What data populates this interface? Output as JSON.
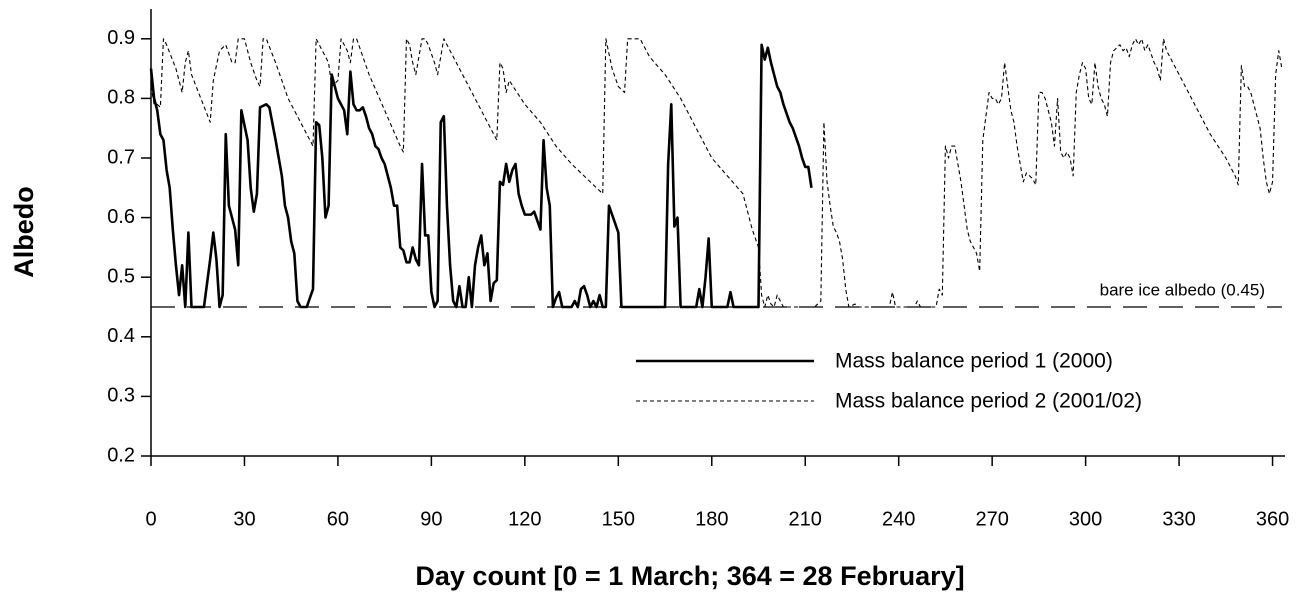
{
  "chart_data": {
    "type": "line",
    "x_label": "Day count [0 = 1 March; 364 = 28 February]",
    "y_label": "Albedo",
    "xlim": [
      0,
      364
    ],
    "ylim": [
      0.2,
      0.95
    ],
    "xticks": [
      0,
      30,
      60,
      90,
      120,
      150,
      180,
      210,
      240,
      270,
      300,
      330,
      360
    ],
    "yticks": [
      0.2,
      0.3,
      0.4,
      0.5,
      0.6,
      0.7,
      0.8,
      0.9
    ],
    "grid": false,
    "legend_position": "center right",
    "reference_line": {
      "value": 0.45,
      "label": "bare ice albedo (0.45)",
      "color": "#000000",
      "line_style": "long-dashed"
    },
    "series": [
      {
        "name": "Mass balance period 1 (2000)",
        "color": "#000000",
        "line_style": "solid",
        "x": [
          0,
          1,
          2,
          3,
          4,
          5,
          6,
          7,
          8,
          9,
          10,
          11,
          12,
          13,
          15,
          17,
          19,
          20,
          21,
          22,
          23,
          24,
          25,
          27,
          28,
          29,
          31,
          32,
          33,
          34,
          35,
          37,
          38,
          40,
          42,
          43,
          44,
          45,
          46,
          47,
          48,
          50,
          52,
          53,
          54,
          55,
          56,
          57,
          58,
          59,
          60,
          61,
          62,
          63,
          64,
          65,
          66,
          67,
          68,
          69,
          70,
          71,
          72,
          73,
          74,
          75,
          76,
          77,
          78,
          79,
          80,
          81,
          82,
          83,
          84,
          85,
          86,
          87,
          88,
          89,
          90,
          91,
          92,
          93,
          94,
          95,
          96,
          97,
          98,
          99,
          100,
          101,
          102,
          103,
          104,
          105,
          106,
          107,
          108,
          109,
          110,
          111,
          112,
          113,
          114,
          115,
          116,
          117,
          118,
          119,
          120,
          122,
          123,
          125,
          126,
          127,
          128,
          129,
          130,
          131,
          132,
          135,
          136,
          137,
          138,
          139,
          140,
          141,
          142,
          143,
          144,
          145,
          146,
          147,
          149,
          150,
          151,
          165,
          166,
          167,
          168,
          169,
          170,
          171,
          172,
          175,
          176,
          177,
          178,
          179,
          180,
          182,
          185,
          186,
          187,
          195,
          196,
          197,
          198,
          199,
          200,
          201,
          202,
          203,
          204,
          205,
          206,
          207,
          208,
          209,
          210,
          211,
          212
        ],
        "values": [
          0.85,
          0.8,
          0.78,
          0.74,
          0.73,
          0.68,
          0.65,
          0.58,
          0.52,
          0.47,
          0.52,
          0.45,
          0.575,
          0.45,
          0.45,
          0.45,
          0.53,
          0.575,
          0.53,
          0.45,
          0.47,
          0.74,
          0.62,
          0.58,
          0.52,
          0.78,
          0.73,
          0.65,
          0.61,
          0.64,
          0.785,
          0.79,
          0.785,
          0.73,
          0.67,
          0.62,
          0.6,
          0.56,
          0.54,
          0.46,
          0.45,
          0.45,
          0.48,
          0.76,
          0.755,
          0.7,
          0.6,
          0.62,
          0.84,
          0.82,
          0.8,
          0.79,
          0.78,
          0.74,
          0.845,
          0.79,
          0.78,
          0.78,
          0.785,
          0.77,
          0.75,
          0.74,
          0.72,
          0.715,
          0.7,
          0.69,
          0.67,
          0.65,
          0.62,
          0.62,
          0.55,
          0.545,
          0.525,
          0.525,
          0.55,
          0.53,
          0.52,
          0.69,
          0.57,
          0.57,
          0.475,
          0.45,
          0.46,
          0.76,
          0.77,
          0.62,
          0.52,
          0.46,
          0.45,
          0.485,
          0.45,
          0.45,
          0.5,
          0.45,
          0.52,
          0.55,
          0.57,
          0.52,
          0.54,
          0.46,
          0.49,
          0.495,
          0.66,
          0.655,
          0.69,
          0.66,
          0.68,
          0.69,
          0.64,
          0.62,
          0.605,
          0.605,
          0.61,
          0.58,
          0.73,
          0.65,
          0.62,
          0.45,
          0.465,
          0.475,
          0.45,
          0.45,
          0.46,
          0.45,
          0.48,
          0.485,
          0.47,
          0.45,
          0.46,
          0.45,
          0.47,
          0.45,
          0.45,
          0.62,
          0.59,
          0.575,
          0.45,
          0.45,
          0.69,
          0.79,
          0.585,
          0.6,
          0.45,
          0.45,
          0.45,
          0.45,
          0.48,
          0.45,
          0.5,
          0.565,
          0.45,
          0.45,
          0.45,
          0.475,
          0.45,
          0.45,
          0.89,
          0.865,
          0.885,
          0.86,
          0.84,
          0.82,
          0.81,
          0.79,
          0.775,
          0.76,
          0.75,
          0.735,
          0.72,
          0.7,
          0.685,
          0.685,
          0.65
        ]
      },
      {
        "name": "Mass balance period 2 (2001/02)",
        "color": "#000000",
        "line_style": "dashed",
        "x": [
          0,
          1,
          2,
          3,
          4,
          5,
          8,
          10,
          11,
          12,
          13,
          16,
          19,
          20,
          22,
          24,
          26,
          27,
          28,
          30,
          32,
          34,
          35,
          36,
          37,
          40,
          44,
          48,
          52,
          53,
          56,
          57,
          58,
          60,
          61,
          63,
          64,
          65,
          66,
          70,
          75,
          80,
          81,
          82,
          83,
          84,
          85,
          86,
          87,
          88,
          89,
          91,
          92,
          93,
          94,
          95,
          100,
          105,
          110,
          111,
          112,
          113,
          114,
          115,
          120,
          125,
          130,
          135,
          140,
          145,
          146,
          148,
          150,
          152,
          153,
          155,
          157,
          160,
          165,
          170,
          175,
          180,
          185,
          190,
          192,
          193,
          195,
          196,
          197,
          198,
          199,
          200,
          201,
          202,
          203,
          210,
          213,
          215,
          216,
          217,
          218,
          219,
          220,
          221,
          222,
          223,
          224,
          226,
          227,
          237,
          238,
          239,
          245,
          246,
          247,
          252,
          253,
          254,
          255,
          256,
          257,
          258,
          259,
          260,
          261,
          262,
          263,
          264,
          265,
          266,
          267,
          268,
          269,
          270,
          271,
          272,
          273,
          274,
          275,
          276,
          277,
          278,
          279,
          280,
          281,
          282,
          283,
          284,
          285,
          286,
          287,
          288,
          289,
          290,
          291,
          292,
          293,
          294,
          295,
          296,
          297,
          298,
          299,
          300,
          301,
          302,
          303,
          304,
          305,
          306,
          307,
          308,
          309,
          310,
          311,
          312,
          313,
          314,
          315,
          316,
          317,
          318,
          319,
          320,
          322,
          323,
          324,
          325,
          326,
          330,
          335,
          340,
          345,
          348,
          349,
          350,
          351,
          352,
          353,
          355,
          356,
          357,
          358,
          359,
          360,
          361,
          362,
          363
        ],
        "values": [
          0.82,
          0.79,
          0.79,
          0.785,
          0.9,
          0.89,
          0.85,
          0.81,
          0.86,
          0.88,
          0.84,
          0.8,
          0.76,
          0.83,
          0.88,
          0.89,
          0.86,
          0.86,
          0.9,
          0.9,
          0.86,
          0.83,
          0.82,
          0.9,
          0.9,
          0.86,
          0.8,
          0.76,
          0.72,
          0.9,
          0.87,
          0.86,
          0.82,
          0.83,
          0.9,
          0.88,
          0.86,
          0.9,
          0.9,
          0.84,
          0.78,
          0.72,
          0.71,
          0.9,
          0.89,
          0.86,
          0.84,
          0.87,
          0.9,
          0.9,
          0.89,
          0.86,
          0.84,
          0.87,
          0.9,
          0.89,
          0.84,
          0.79,
          0.74,
          0.73,
          0.86,
          0.85,
          0.81,
          0.83,
          0.79,
          0.76,
          0.72,
          0.69,
          0.665,
          0.64,
          0.9,
          0.85,
          0.82,
          0.81,
          0.9,
          0.9,
          0.9,
          0.87,
          0.84,
          0.8,
          0.75,
          0.7,
          0.67,
          0.64,
          0.6,
          0.58,
          0.55,
          0.47,
          0.45,
          0.47,
          0.455,
          0.45,
          0.47,
          0.46,
          0.45,
          0.45,
          0.45,
          0.46,
          0.76,
          0.66,
          0.62,
          0.585,
          0.575,
          0.56,
          0.53,
          0.48,
          0.45,
          0.455,
          0.45,
          0.45,
          0.475,
          0.45,
          0.45,
          0.46,
          0.45,
          0.45,
          0.48,
          0.47,
          0.72,
          0.7,
          0.72,
          0.72,
          0.69,
          0.66,
          0.62,
          0.58,
          0.56,
          0.55,
          0.54,
          0.51,
          0.73,
          0.77,
          0.81,
          0.8,
          0.8,
          0.79,
          0.8,
          0.86,
          0.82,
          0.78,
          0.76,
          0.72,
          0.69,
          0.66,
          0.675,
          0.67,
          0.665,
          0.655,
          0.81,
          0.81,
          0.8,
          0.78,
          0.76,
          0.72,
          0.8,
          0.71,
          0.7,
          0.71,
          0.7,
          0.67,
          0.81,
          0.84,
          0.86,
          0.85,
          0.8,
          0.79,
          0.86,
          0.82,
          0.8,
          0.79,
          0.77,
          0.86,
          0.88,
          0.885,
          0.89,
          0.88,
          0.885,
          0.87,
          0.89,
          0.9,
          0.89,
          0.9,
          0.88,
          0.89,
          0.86,
          0.85,
          0.83,
          0.9,
          0.88,
          0.84,
          0.79,
          0.74,
          0.7,
          0.67,
          0.655,
          0.855,
          0.82,
          0.82,
          0.81,
          0.77,
          0.75,
          0.7,
          0.66,
          0.64,
          0.66,
          0.84,
          0.88,
          0.85
        ]
      }
    ]
  }
}
